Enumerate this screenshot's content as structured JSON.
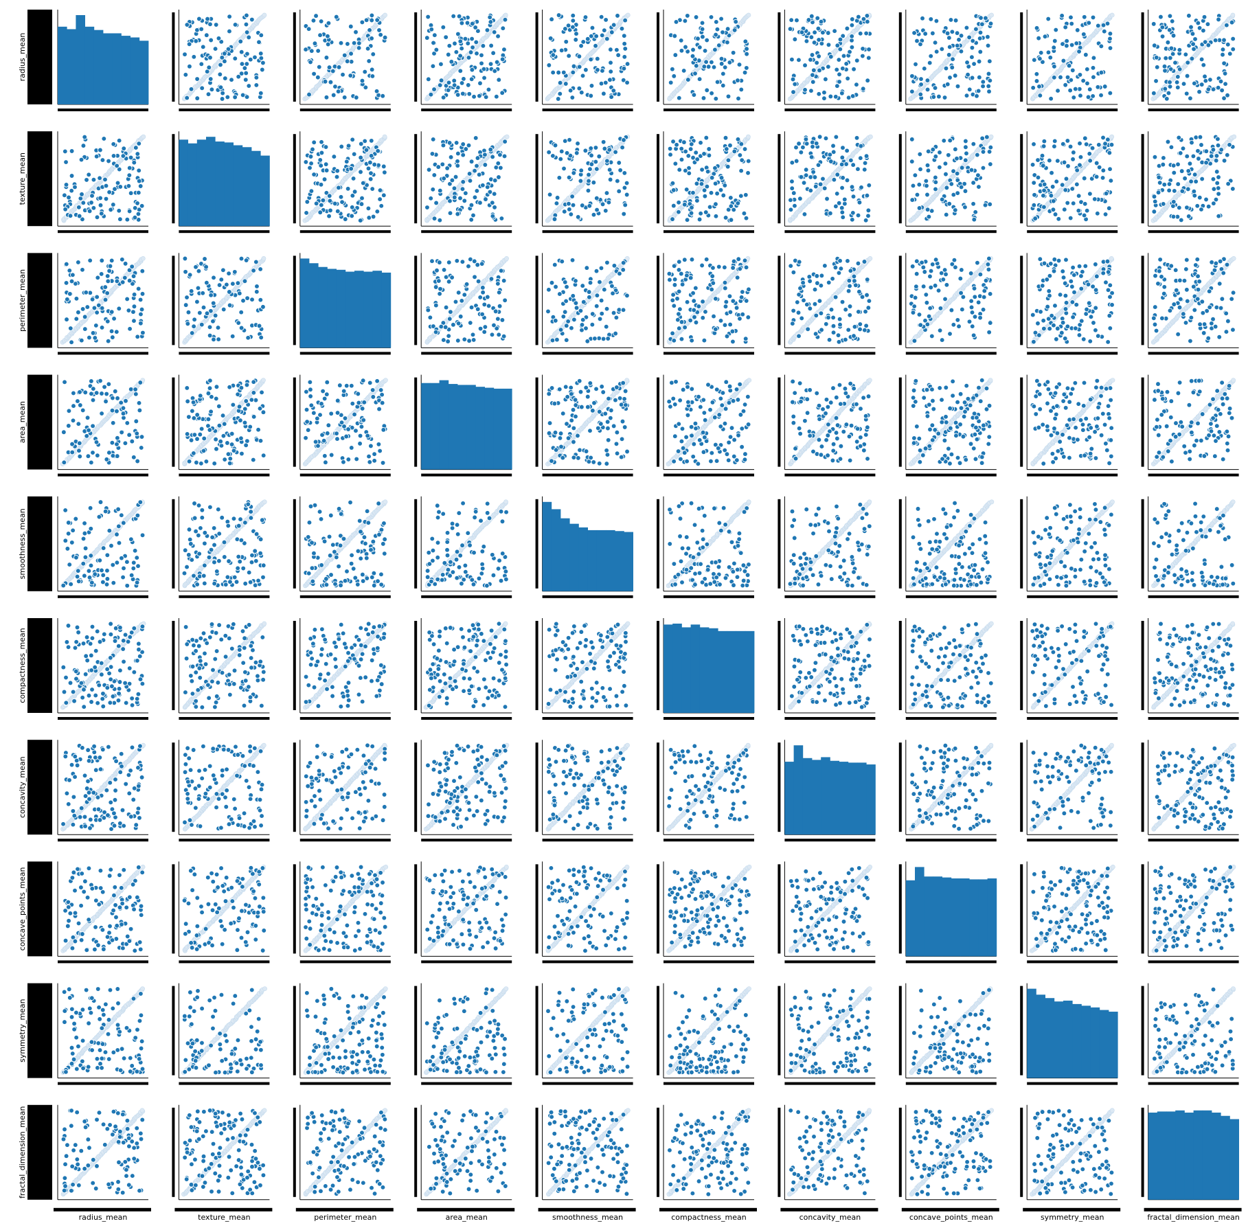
{
  "colors": {
    "marker": "#1f77b4",
    "marker_edge": "#ffffff",
    "axis": "#000000",
    "tick_clutter": "#000000",
    "background": "#ffffff"
  },
  "chart_data": {
    "type": "scatter",
    "title": "",
    "grid": false,
    "legend": "none",
    "variables": [
      "radius_mean",
      "texture_mean",
      "perimeter_mean",
      "area_mean",
      "smoothness_mean",
      "compactness_mean",
      "concavity_mean",
      "concave_points_mean",
      "symmetry_mean",
      "fractal_dimension_mean"
    ],
    "diagonal": {
      "type": "histogram",
      "bins": 10,
      "counts": [
        [
          94,
          91,
          108,
          94,
          90,
          86,
          86,
          83,
          81,
          77
        ],
        [
          92,
          88,
          92,
          95,
          90,
          89,
          86,
          84,
          80,
          75
        ],
        [
          95,
          90,
          86,
          84,
          83,
          81,
          82,
          81,
          82,
          80
        ],
        [
          92,
          92,
          95,
          91,
          90,
          90,
          88,
          87,
          86,
          86
        ],
        [
          98,
          90,
          80,
          74,
          70,
          67,
          67,
          67,
          66,
          65
        ],
        [
          95,
          96,
          92,
          95,
          92,
          91,
          88,
          88,
          88,
          88
        ],
        [
          80,
          98,
          84,
          82,
          85,
          81,
          80,
          79,
          79,
          77
        ],
        [
          80,
          94,
          84,
          84,
          83,
          82,
          82,
          81,
          81,
          82
        ],
        [
          105,
          98,
          94,
          90,
          91,
          87,
          85,
          83,
          80,
          78
        ],
        [
          80,
          81,
          81,
          82,
          80,
          82,
          82,
          80,
          77,
          74
        ]
      ]
    },
    "offdiagonal": {
      "type": "scatter",
      "description_of_points": "each panel shows a dense diagonal line of light blue points plus about 100-140 scattered blue points"
    }
  }
}
